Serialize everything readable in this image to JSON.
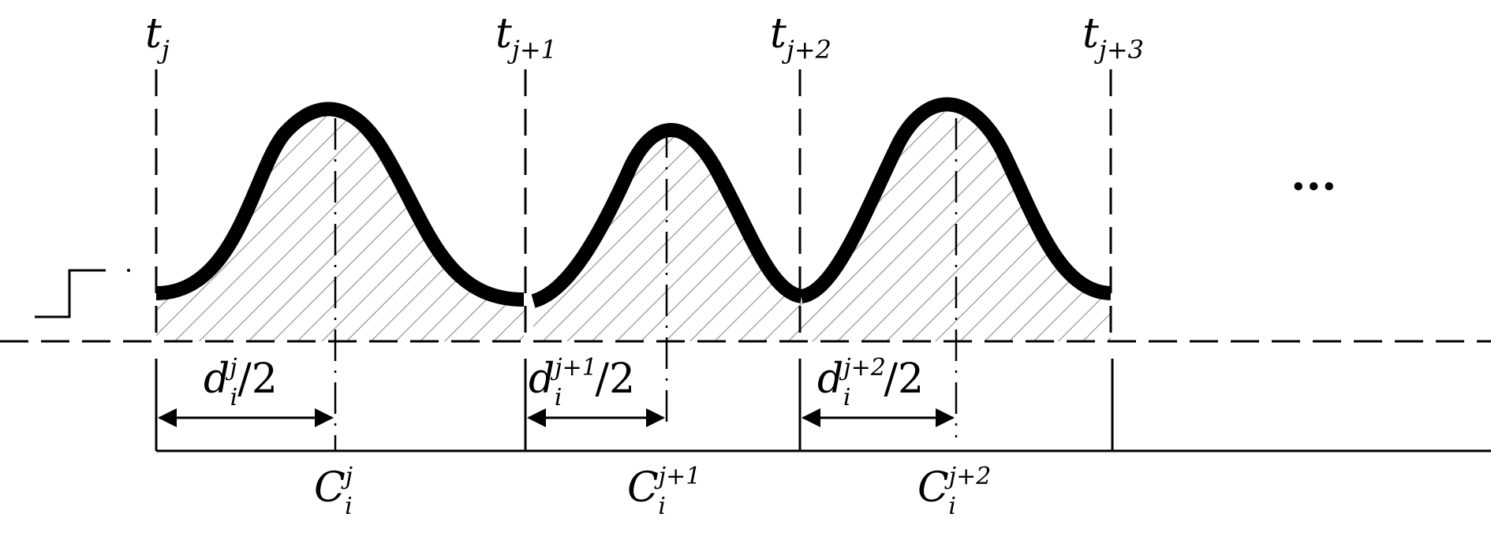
{
  "time_labels": [
    {
      "base": "t",
      "sub": "j"
    },
    {
      "base": "t",
      "sub": "j+1"
    },
    {
      "base": "t",
      "sub": "j+2"
    },
    {
      "base": "t",
      "sub": "j+3"
    }
  ],
  "duration_labels": [
    {
      "base": "d",
      "sup": "j",
      "sub": "i",
      "suffix": "/2"
    },
    {
      "base": "d",
      "sup": "j+1",
      "sub": "i",
      "suffix": "/2"
    },
    {
      "base": "d",
      "sup": "j+2",
      "sub": "i",
      "suffix": "/2"
    }
  ],
  "center_labels": [
    {
      "base": "C",
      "sup": "j",
      "sub": "i"
    },
    {
      "base": "C",
      "sup": "j+1",
      "sub": "i"
    },
    {
      "base": "C",
      "sup": "j+2",
      "sub": "i"
    }
  ],
  "ellipsis": "···",
  "colors": {
    "ink": "#000000",
    "hatch": "#a8a8a8"
  }
}
